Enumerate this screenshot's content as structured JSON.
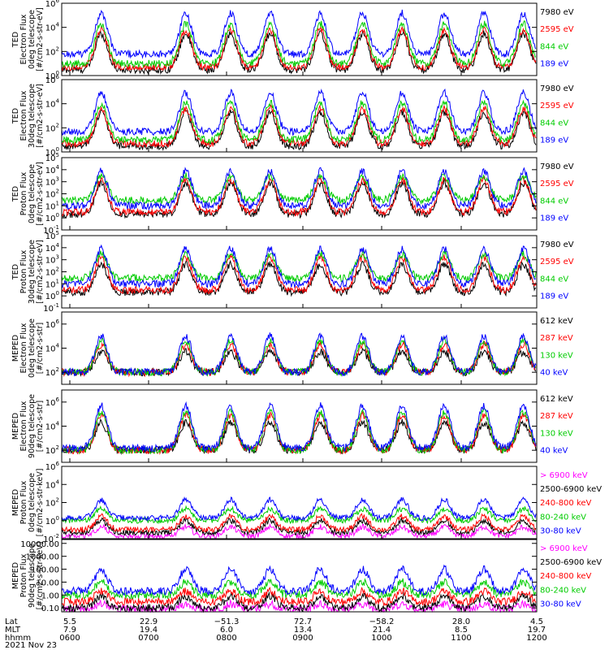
{
  "chart_data": {
    "type": "line",
    "x_axis": {
      "row_labels": [
        "Lat",
        "MLT",
        "hhmm"
      ],
      "date": "2021 Nov 23",
      "ticks": [
        {
          "lat": "5.5",
          "mlt": "7.9",
          "hhmm": "0600"
        },
        {
          "lat": "22.9",
          "mlt": "19.4",
          "hhmm": "0700"
        },
        {
          "lat": "−51.3",
          "mlt": "6.0",
          "hhmm": "0800"
        },
        {
          "lat": "72.7",
          "mlt": "13.4",
          "hhmm": "0900"
        },
        {
          "lat": "−58.2",
          "mlt": "21.4",
          "hhmm": "1000"
        },
        {
          "lat": "28.0",
          "mlt": "8.5",
          "hhmm": "1100"
        },
        {
          "lat": "4.5",
          "mlt": "19.7",
          "hhmm": "1200"
        }
      ]
    },
    "passes_hhmm": [
      "0630",
      "0734",
      "0808",
      "0838",
      "0916",
      "0948",
      "1018",
      "1050",
      "1120",
      "1150"
    ],
    "panels": [
      {
        "id": "ted-electron-0deg",
        "ylabel": [
          "TED",
          "Electron Flux",
          "0deg telescope",
          "[#/cm2-s-str-eV]"
        ],
        "ylim": [
          1,
          1000000
        ],
        "yticks": [
          {
            "v": 1,
            "t": "10^0"
          },
          {
            "v": 100,
            "t": "10^2"
          },
          {
            "v": 10000,
            "t": "10^4"
          },
          {
            "v": 1000000,
            "t": "10^6"
          }
        ],
        "series": [
          {
            "name": "7980 eV",
            "color": "#000000",
            "base": 3,
            "peak": 3000
          },
          {
            "name": "2595 eV",
            "color": "#ff0000",
            "base": 5,
            "peak": 6000
          },
          {
            "name": "844 eV",
            "color": "#00cc00",
            "base": 10,
            "peak": 20000
          },
          {
            "name": "189 eV",
            "color": "#0000ff",
            "base": 60,
            "peak": 150000
          }
        ]
      },
      {
        "id": "ted-electron-30deg",
        "ylabel": [
          "TED",
          "Electron Flux",
          "30deg telescope",
          "[#/cm2-s-str-eV]"
        ],
        "ylim": [
          1,
          1000000
        ],
        "yticks": [
          {
            "v": 1,
            "t": "10^0"
          },
          {
            "v": 100,
            "t": "10^2"
          },
          {
            "v": 10000,
            "t": "10^4"
          },
          {
            "v": 1000000,
            "t": "10^6"
          }
        ],
        "series": [
          {
            "name": "7980 eV",
            "color": "#000000",
            "base": 3,
            "peak": 2000
          },
          {
            "name": "2595 eV",
            "color": "#ff0000",
            "base": 5,
            "peak": 4000
          },
          {
            "name": "844 eV",
            "color": "#00cc00",
            "base": 10,
            "peak": 12000
          },
          {
            "name": "189 eV",
            "color": "#0000ff",
            "base": 50,
            "peak": 80000
          }
        ]
      },
      {
        "id": "ted-proton-0deg",
        "ylabel": [
          "TED",
          "Proton Flux",
          "0deg telescope",
          "[#/cm2-s-str-eV]"
        ],
        "ylim": [
          0.1,
          100000
        ],
        "yticks": [
          {
            "v": 0.1,
            "t": "10^-1"
          },
          {
            "v": 1,
            "t": "10^0"
          },
          {
            "v": 10,
            "t": "10^1"
          },
          {
            "v": 100,
            "t": "10^2"
          },
          {
            "v": 1000,
            "t": "10^3"
          },
          {
            "v": 10000,
            "t": "10^4"
          },
          {
            "v": 100000,
            "t": "10^5"
          }
        ],
        "series": [
          {
            "name": "7980 eV",
            "color": "#000000",
            "base": 2,
            "peak": 800
          },
          {
            "name": "2595 eV",
            "color": "#ff0000",
            "base": 3,
            "peak": 1500
          },
          {
            "name": "844 eV",
            "color": "#00cc00",
            "base": 30,
            "peak": 3000
          },
          {
            "name": "189 eV",
            "color": "#0000ff",
            "base": 10,
            "peak": 8000
          }
        ]
      },
      {
        "id": "ted-proton-30deg",
        "ylabel": [
          "TED",
          "Proton Flux",
          "30deg telescope",
          "[#/cm2-s-str-eV]"
        ],
        "ylim": [
          0.1,
          100000
        ],
        "yticks": [
          {
            "v": 0.1,
            "t": "10^-1"
          },
          {
            "v": 1,
            "t": "10^0"
          },
          {
            "v": 10,
            "t": "10^1"
          },
          {
            "v": 100,
            "t": "10^2"
          },
          {
            "v": 1000,
            "t": "10^3"
          },
          {
            "v": 10000,
            "t": "10^4"
          },
          {
            "v": 100000,
            "t": "10^5"
          }
        ],
        "series": [
          {
            "name": "7980 eV",
            "color": "#000000",
            "base": 2,
            "peak": 400
          },
          {
            "name": "2595 eV",
            "color": "#ff0000",
            "base": 3,
            "peak": 1500
          },
          {
            "name": "844 eV",
            "color": "#00cc00",
            "base": 30,
            "peak": 3000
          },
          {
            "name": "189 eV",
            "color": "#0000ff",
            "base": 10,
            "peak": 8000
          }
        ]
      },
      {
        "id": "meped-electron-0deg",
        "ylabel": [
          "MEPED",
          "Electron Flux",
          "0deg telescope",
          "[#/cm2-s-str]"
        ],
        "ylim": [
          10,
          10000000
        ],
        "yticks": [
          {
            "v": 100,
            "t": "10^2"
          },
          {
            "v": 10000,
            "t": "10^4"
          },
          {
            "v": 1000000,
            "t": "10^6"
          }
        ],
        "series": [
          {
            "name": "612 keV",
            "color": "#000000",
            "base": 100,
            "peak": 5000
          },
          {
            "name": "287 keV",
            "color": "#ff0000",
            "base": 100,
            "peak": 20000
          },
          {
            "name": "130 keV",
            "color": "#00cc00",
            "base": 100,
            "peak": 40000
          },
          {
            "name": "40 keV",
            "color": "#0000ff",
            "base": 100,
            "peak": 100000
          }
        ]
      },
      {
        "id": "meped-electron-90deg",
        "ylabel": [
          "MEPED",
          "Electron Flux",
          "90deg telescope",
          "[#/cm2-s-str]"
        ],
        "ylim": [
          10,
          10000000
        ],
        "yticks": [
          {
            "v": 100,
            "t": "10^2"
          },
          {
            "v": 10000,
            "t": "10^4"
          },
          {
            "v": 1000000,
            "t": "10^6"
          }
        ],
        "series": [
          {
            "name": "612 keV",
            "color": "#000000",
            "base": 100,
            "peak": 20000
          },
          {
            "name": "287 keV",
            "color": "#ff0000",
            "base": 100,
            "peak": 80000
          },
          {
            "name": "130 keV",
            "color": "#00cc00",
            "base": 100,
            "peak": 150000
          },
          {
            "name": "40 keV",
            "color": "#0000ff",
            "base": 150,
            "peak": 500000
          }
        ]
      },
      {
        "id": "meped-proton-0deg",
        "ylabel": [
          "MEPED",
          "Proton Flux",
          "0deg telescope",
          "[#/cm2-s-str-keV]"
        ],
        "ylim": [
          0.01,
          1000000
        ],
        "yticks": [
          {
            "v": 0.01,
            "t": "10^-2"
          },
          {
            "v": 1,
            "t": "10^0"
          },
          {
            "v": 100,
            "t": "10^2"
          },
          {
            "v": 10000,
            "t": "10^4"
          },
          {
            "v": 1000000,
            "t": "10^6"
          }
        ],
        "series": [
          {
            "name": "> 6900 keV",
            "color": "#ff00ff",
            "base": 0.02,
            "peak": 0.2
          },
          {
            "name": "2500-6900 keV",
            "color": "#000000",
            "base": 0.05,
            "peak": 1
          },
          {
            "name": "240-800 keV",
            "color": "#ff0000",
            "base": 0.1,
            "peak": 3
          },
          {
            "name": "80-240 keV",
            "color": "#00cc00",
            "base": 1,
            "peak": 20
          },
          {
            "name": "30-80 keV",
            "color": "#0000ff",
            "base": 2,
            "peak": 200
          }
        ]
      },
      {
        "id": "meped-proton-90deg",
        "ylabel": [
          "MEPED",
          "Proton Flux",
          "90deg telescope",
          "[#/cm2-s-str-keV]"
        ],
        "ylim": [
          0.05,
          20000
        ],
        "yticks": [
          {
            "v": 0.1,
            "t": "0.10"
          },
          {
            "v": 1,
            "t": "1.00"
          },
          {
            "v": 10,
            "t": "10.00"
          },
          {
            "v": 100,
            "t": "100.00"
          },
          {
            "v": 1000,
            "t": "1000.00"
          },
          {
            "v": 10000,
            "t": "10000.00"
          }
        ],
        "series": [
          {
            "name": "> 6900 keV",
            "color": "#ff00ff",
            "base": 0.08,
            "peak": 0.2
          },
          {
            "name": "2500-6900 keV",
            "color": "#000000",
            "base": 0.1,
            "peak": 0.8
          },
          {
            "name": "240-800 keV",
            "color": "#ff0000",
            "base": 0.3,
            "peak": 2
          },
          {
            "name": "80-240 keV",
            "color": "#00cc00",
            "base": 1,
            "peak": 10
          },
          {
            "name": "30-80 keV",
            "color": "#0000ff",
            "base": 2,
            "peak": 100
          }
        ]
      }
    ]
  }
}
